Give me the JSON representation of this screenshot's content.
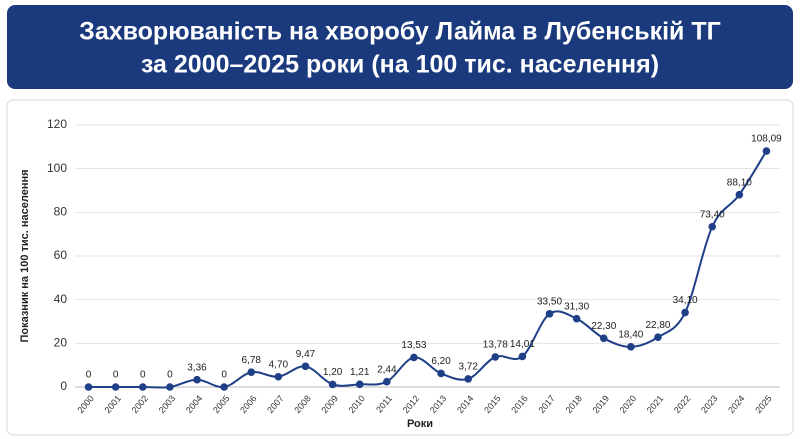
{
  "chart_data": {
    "type": "line",
    "title": [
      "Захворюваність на хворобу Лайма в Лубенській ТГ",
      "за 2000–2025 роки (на 100 тис. населення)"
    ],
    "x_label": "Роки",
    "y_label": "Показник на 100 тис. населення",
    "categories": [
      "2000",
      "2001",
      "2002",
      "2003",
      "2004",
      "2005",
      "2006",
      "2007",
      "2008",
      "2009",
      "2010",
      "2011",
      "2012",
      "2013",
      "2014",
      "2015",
      "2016",
      "2017",
      "2018",
      "2019",
      "2020",
      "2021",
      "2022",
      "2023",
      "2024",
      "2025"
    ],
    "series": [
      {
        "name": "Показник",
        "color": "#1f3f87",
        "values": [
          0,
          0,
          0,
          0,
          3.36,
          0,
          6.78,
          4.7,
          9.47,
          1.2,
          1.21,
          2.44,
          13.53,
          6.2,
          3.72,
          13.78,
          14.01,
          33.5,
          31.3,
          22.3,
          18.4,
          22.8,
          34.1,
          73.4,
          88.1,
          108.09
        ],
        "value_labels": [
          "0",
          "0",
          "0",
          "0",
          "3,36",
          "0",
          "6,78",
          "4,70",
          "9,47",
          "1,20",
          "1,21",
          "2,44",
          "13,53",
          "6,20",
          "3,72",
          "13,78",
          "14,01",
          "33,50",
          "31,30",
          "22,30",
          "18,40",
          "22,80",
          "34,10",
          "73,40",
          "88,10",
          "108,09"
        ]
      }
    ],
    "ylim": [
      0,
      120
    ],
    "yticks": [
      0,
      20,
      40,
      60,
      80,
      100,
      120
    ],
    "grid": true
  }
}
